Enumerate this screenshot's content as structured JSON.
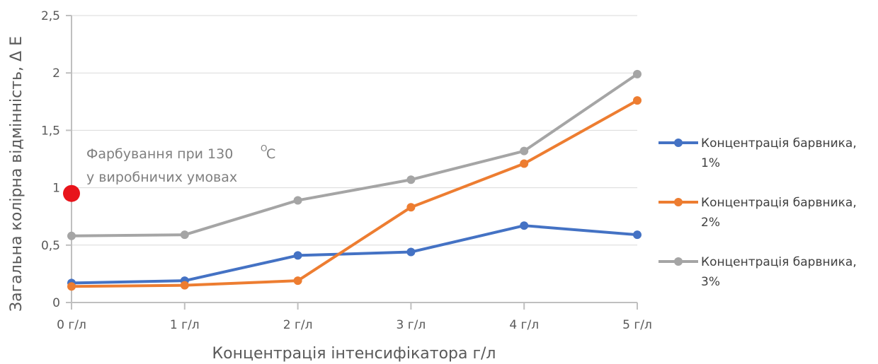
{
  "chart_data": {
    "type": "line",
    "categories": [
      "0 г/л",
      "1 г/л",
      "2 г/л",
      "3 г/л",
      "4 г/л",
      "5 г/л"
    ],
    "series": [
      {
        "name_line1": "Концентрація барвника,",
        "name_line2": "1%",
        "color": "#4472C4",
        "values": [
          0.17,
          0.19,
          0.41,
          0.44,
          0.67,
          0.59
        ]
      },
      {
        "name_line1": "Концентрація барвника,",
        "name_line2": "2%",
        "color": "#ED7D31",
        "values": [
          0.14,
          0.15,
          0.19,
          0.83,
          1.21,
          1.76
        ]
      },
      {
        "name_line1": "Концентрація барвника,",
        "name_line2": "3%",
        "color": "#A5A5A5",
        "values": [
          0.58,
          0.59,
          0.89,
          1.07,
          1.32,
          1.99
        ]
      }
    ],
    "xlabel": "Концентрація інтенсифікатора г/л",
    "ylabel": "Загальна колірна відмінність, Δ E",
    "ylim": [
      0,
      2.5
    ],
    "yticks": [
      "0",
      "0,5",
      "1",
      "1,5",
      "2",
      "2,5"
    ],
    "grid": true,
    "legend_position": "right",
    "annotation": {
      "line1": "Фарбування при 130",
      "degree": "O",
      "unit": "C",
      "line2": "у виробничих умовах",
      "point_value": 0.95,
      "point_color": "#E8141B"
    }
  }
}
